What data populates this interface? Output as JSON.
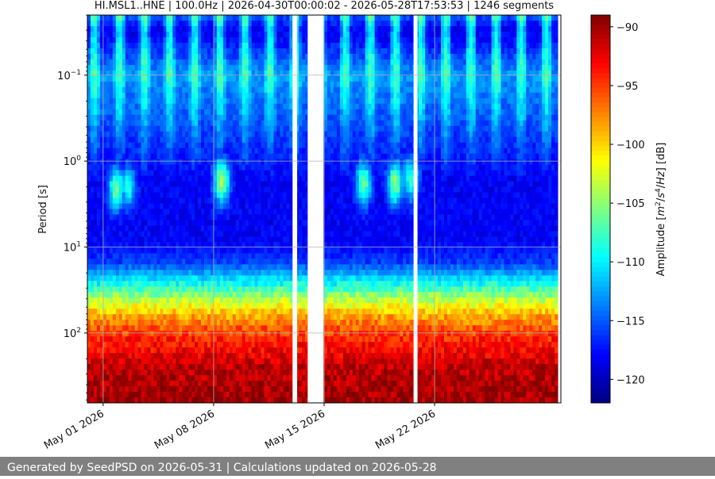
{
  "chart_data": {
    "type": "heatmap",
    "title": "HI.MSL1..HNE | 100.0Hz | 2026-04-30T00:00:02 - 2026-05-28T17:53:53 | 1246 segments",
    "xlabel": "",
    "ylabel": "Period [s]",
    "x_start": "2026-04-30",
    "x_end": "2026-05-30",
    "x_ticks": [
      {
        "date": "2026-05-01",
        "label": "May 01 2026"
      },
      {
        "date": "2026-05-08",
        "label": "May 08 2026"
      },
      {
        "date": "2026-05-15",
        "label": "May 15 2026"
      },
      {
        "date": "2026-05-22",
        "label": "May 22 2026"
      }
    ],
    "y_scale": "log",
    "y_inverted": true,
    "y_range": [
      0.02,
      650
    ],
    "y_ticks": [
      {
        "value": 0.1,
        "base": "10",
        "exp": "−1"
      },
      {
        "value": 1,
        "base": "10",
        "exp": "0"
      },
      {
        "value": 10,
        "base": "10",
        "exp": "1"
      },
      {
        "value": 100,
        "base": "10",
        "exp": "2"
      }
    ],
    "grid": true,
    "colormap": "jet",
    "colorbar": {
      "label": "Amplitude [m²/s⁴/Hz] [dB]",
      "label_pre": "Amplitude [",
      "label_post": "] [dB]",
      "range": [
        -122,
        -89
      ],
      "ticks": [
        {
          "value": -90,
          "label": "−90"
        },
        {
          "value": -95,
          "label": "−95"
        },
        {
          "value": -100,
          "label": "−100"
        },
        {
          "value": -105,
          "label": "−105"
        },
        {
          "value": -110,
          "label": "−110"
        },
        {
          "value": -115,
          "label": "−115"
        },
        {
          "value": -120,
          "label": "−120"
        }
      ]
    },
    "data_gaps": [
      {
        "start": "2026-05-13T00:00",
        "end": "2026-05-13T07:00"
      },
      {
        "start": "2026-05-13T23:00",
        "end": "2026-05-14T23:00"
      },
      {
        "start": "2026-05-20T16:00",
        "end": "2026-05-20T22:00"
      }
    ],
    "period_profile": [
      {
        "period": 0.02,
        "amplitude": -115
      },
      {
        "period": 0.03,
        "amplitude": -119
      },
      {
        "period": 0.1,
        "amplitude": -113
      },
      {
        "period": 0.5,
        "amplitude": -116
      },
      {
        "period": 1.5,
        "amplitude": -118
      },
      {
        "period": 5,
        "amplitude": -120
      },
      {
        "period": 15,
        "amplitude": -116
      },
      {
        "period": 25,
        "amplitude": -110
      },
      {
        "period": 40,
        "amplitude": -104
      },
      {
        "period": 60,
        "amplitude": -99
      },
      {
        "period": 100,
        "amplitude": -95
      },
      {
        "period": 250,
        "amplitude": -91
      },
      {
        "period": 650,
        "amplitude": -90
      }
    ],
    "microseism_events": [
      {
        "date": "2026-05-01T20:00",
        "period": 2.1,
        "amplitude": -106
      },
      {
        "date": "2026-05-02T14:00",
        "period": 2.0,
        "amplitude": -109
      },
      {
        "date": "2026-05-08T12:00",
        "period": 1.7,
        "amplitude": -104
      },
      {
        "date": "2026-05-17T12:00",
        "period": 1.8,
        "amplitude": -106
      },
      {
        "date": "2026-05-19T12:00",
        "period": 1.8,
        "amplitude": -105
      },
      {
        "date": "2026-05-20T12:00",
        "period": 1.6,
        "amplitude": -108
      }
    ]
  },
  "footer": {
    "text": "Generated by SeedPSD on 2026-05-31 | Calculations updated on 2026-05-28"
  }
}
